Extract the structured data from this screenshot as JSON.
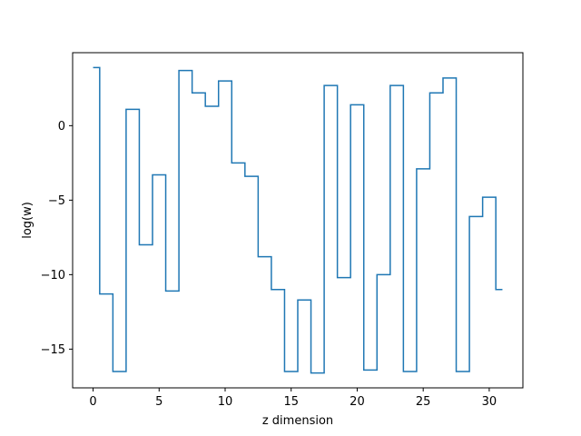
{
  "chart_data": {
    "type": "line",
    "drawstyle": "steps-mid",
    "title": "",
    "xlabel": "z dimension",
    "ylabel": "log(w)",
    "xlim": [
      -1.55,
      32.55
    ],
    "ylim": [
      -17.6,
      4.9
    ],
    "xticks": [
      0,
      5,
      10,
      15,
      20,
      25,
      30
    ],
    "yticks": [
      0,
      -5,
      -10,
      -15
    ],
    "ytick_labels": [
      "0",
      "−5",
      "−10",
      "−15"
    ],
    "grid": false,
    "legend": false,
    "line_color": "#1f77b4",
    "x": [
      0,
      1,
      2,
      3,
      4,
      5,
      6,
      7,
      8,
      9,
      10,
      11,
      12,
      13,
      14,
      15,
      16,
      17,
      18,
      19,
      20,
      21,
      22,
      23,
      24,
      25,
      26,
      27,
      28,
      29,
      30,
      31
    ],
    "y": [
      3.9,
      -11.3,
      -16.5,
      1.1,
      -8.0,
      -3.3,
      -11.1,
      3.7,
      2.2,
      1.3,
      3.0,
      -2.5,
      -3.4,
      -8.8,
      -11.0,
      -16.5,
      -11.7,
      -16.6,
      2.7,
      -10.2,
      1.4,
      -16.4,
      -10.0,
      2.7,
      -16.5,
      -2.9,
      2.2,
      3.2,
      -16.5,
      -6.1,
      -4.8,
      -11.0
    ]
  }
}
